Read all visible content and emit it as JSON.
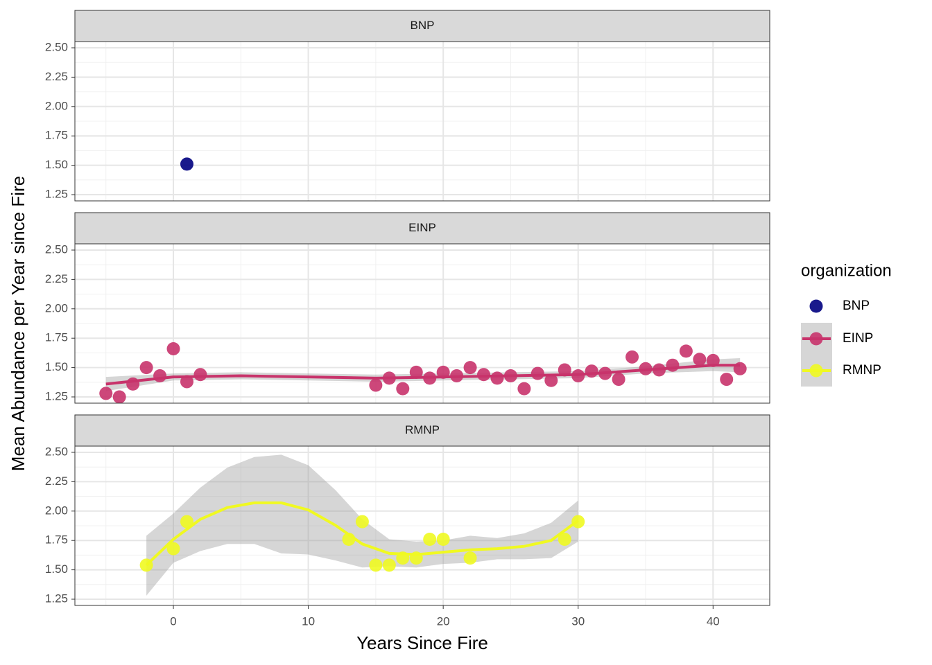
{
  "chart_data": {
    "type": "scatter",
    "x_label": "Years Since Fire",
    "y_label": "Mean Abundance per Year since Fire",
    "legend_title": "organization",
    "xlim": [
      -7.3,
      44.2
    ],
    "xticks": [
      0,
      10,
      20,
      30,
      40
    ],
    "minor_xticks": [
      -5,
      5,
      15,
      25,
      35
    ],
    "ylim": [
      1.197,
      2.553
    ],
    "yticks": [
      {
        "value": 1.25,
        "label": "1.25"
      },
      {
        "value": 1.5,
        "label": "1.50"
      },
      {
        "value": 1.75,
        "label": "1.75"
      },
      {
        "value": 2.0,
        "label": "2.00"
      },
      {
        "value": 2.25,
        "label": "2.25"
      },
      {
        "value": 2.5,
        "label": "2.50"
      }
    ],
    "minor_yticks": [
      1.375,
      1.625,
      1.875,
      2.125,
      2.375
    ],
    "grid": true,
    "series": [
      {
        "name": "BNP",
        "color": "#000080",
        "x": [
          1
        ],
        "values": [
          1.51
        ]
      },
      {
        "name": "EINP",
        "color": "#c8336b",
        "x": [
          -5,
          -4,
          -3,
          -2,
          -1,
          0,
          1,
          2,
          15,
          16,
          17,
          18,
          19,
          20,
          21,
          22,
          23,
          24,
          25,
          26,
          27,
          28,
          29,
          30,
          31,
          32,
          33,
          34,
          35,
          36,
          37,
          38,
          39,
          40,
          41,
          42
        ],
        "values": [
          1.28,
          1.25,
          1.36,
          1.5,
          1.43,
          1.66,
          1.38,
          1.44,
          1.35,
          1.41,
          1.32,
          1.46,
          1.41,
          1.46,
          1.43,
          1.5,
          1.44,
          1.41,
          1.43,
          1.32,
          1.45,
          1.39,
          1.48,
          1.43,
          1.47,
          1.45,
          1.4,
          1.59,
          1.49,
          1.48,
          1.52,
          1.64,
          1.57,
          1.56,
          1.4,
          1.49
        ],
        "smooth": {
          "x": [
            -5,
            0,
            5,
            10,
            15,
            20,
            25,
            30,
            35,
            40,
            42
          ],
          "values": [
            1.36,
            1.42,
            1.43,
            1.42,
            1.41,
            1.42,
            1.43,
            1.44,
            1.48,
            1.52,
            1.52
          ],
          "lower": [
            1.3,
            1.39,
            1.4,
            1.39,
            1.38,
            1.39,
            1.4,
            1.41,
            1.45,
            1.47,
            1.46
          ],
          "upper": [
            1.42,
            1.45,
            1.46,
            1.45,
            1.44,
            1.45,
            1.46,
            1.47,
            1.51,
            1.57,
            1.58
          ]
        }
      },
      {
        "name": "RMNP",
        "color": "#f0f921",
        "x": [
          -2,
          0,
          1,
          13,
          14,
          15,
          16,
          17,
          18,
          19,
          20,
          22,
          29,
          30
        ],
        "values": [
          1.54,
          1.68,
          1.91,
          1.76,
          1.91,
          1.54,
          1.54,
          1.6,
          1.6,
          1.76,
          1.76,
          1.6,
          1.76,
          1.91
        ],
        "smooth": {
          "x": [
            -2,
            0,
            2,
            4,
            6,
            8,
            10,
            12,
            14,
            16,
            18,
            20,
            22,
            24,
            26,
            28,
            30
          ],
          "values": [
            1.54,
            1.76,
            1.93,
            2.03,
            2.07,
            2.07,
            2.01,
            1.88,
            1.72,
            1.64,
            1.63,
            1.65,
            1.67,
            1.68,
            1.7,
            1.75,
            1.92
          ],
          "lower": [
            1.28,
            1.56,
            1.66,
            1.72,
            1.72,
            1.64,
            1.63,
            1.58,
            1.52,
            1.53,
            1.52,
            1.55,
            1.56,
            1.59,
            1.59,
            1.6,
            1.74
          ],
          "upper": [
            1.79,
            1.98,
            2.2,
            2.37,
            2.46,
            2.48,
            2.39,
            2.18,
            1.93,
            1.76,
            1.74,
            1.75,
            1.79,
            1.77,
            1.81,
            1.9,
            2.09
          ]
        }
      }
    ]
  }
}
